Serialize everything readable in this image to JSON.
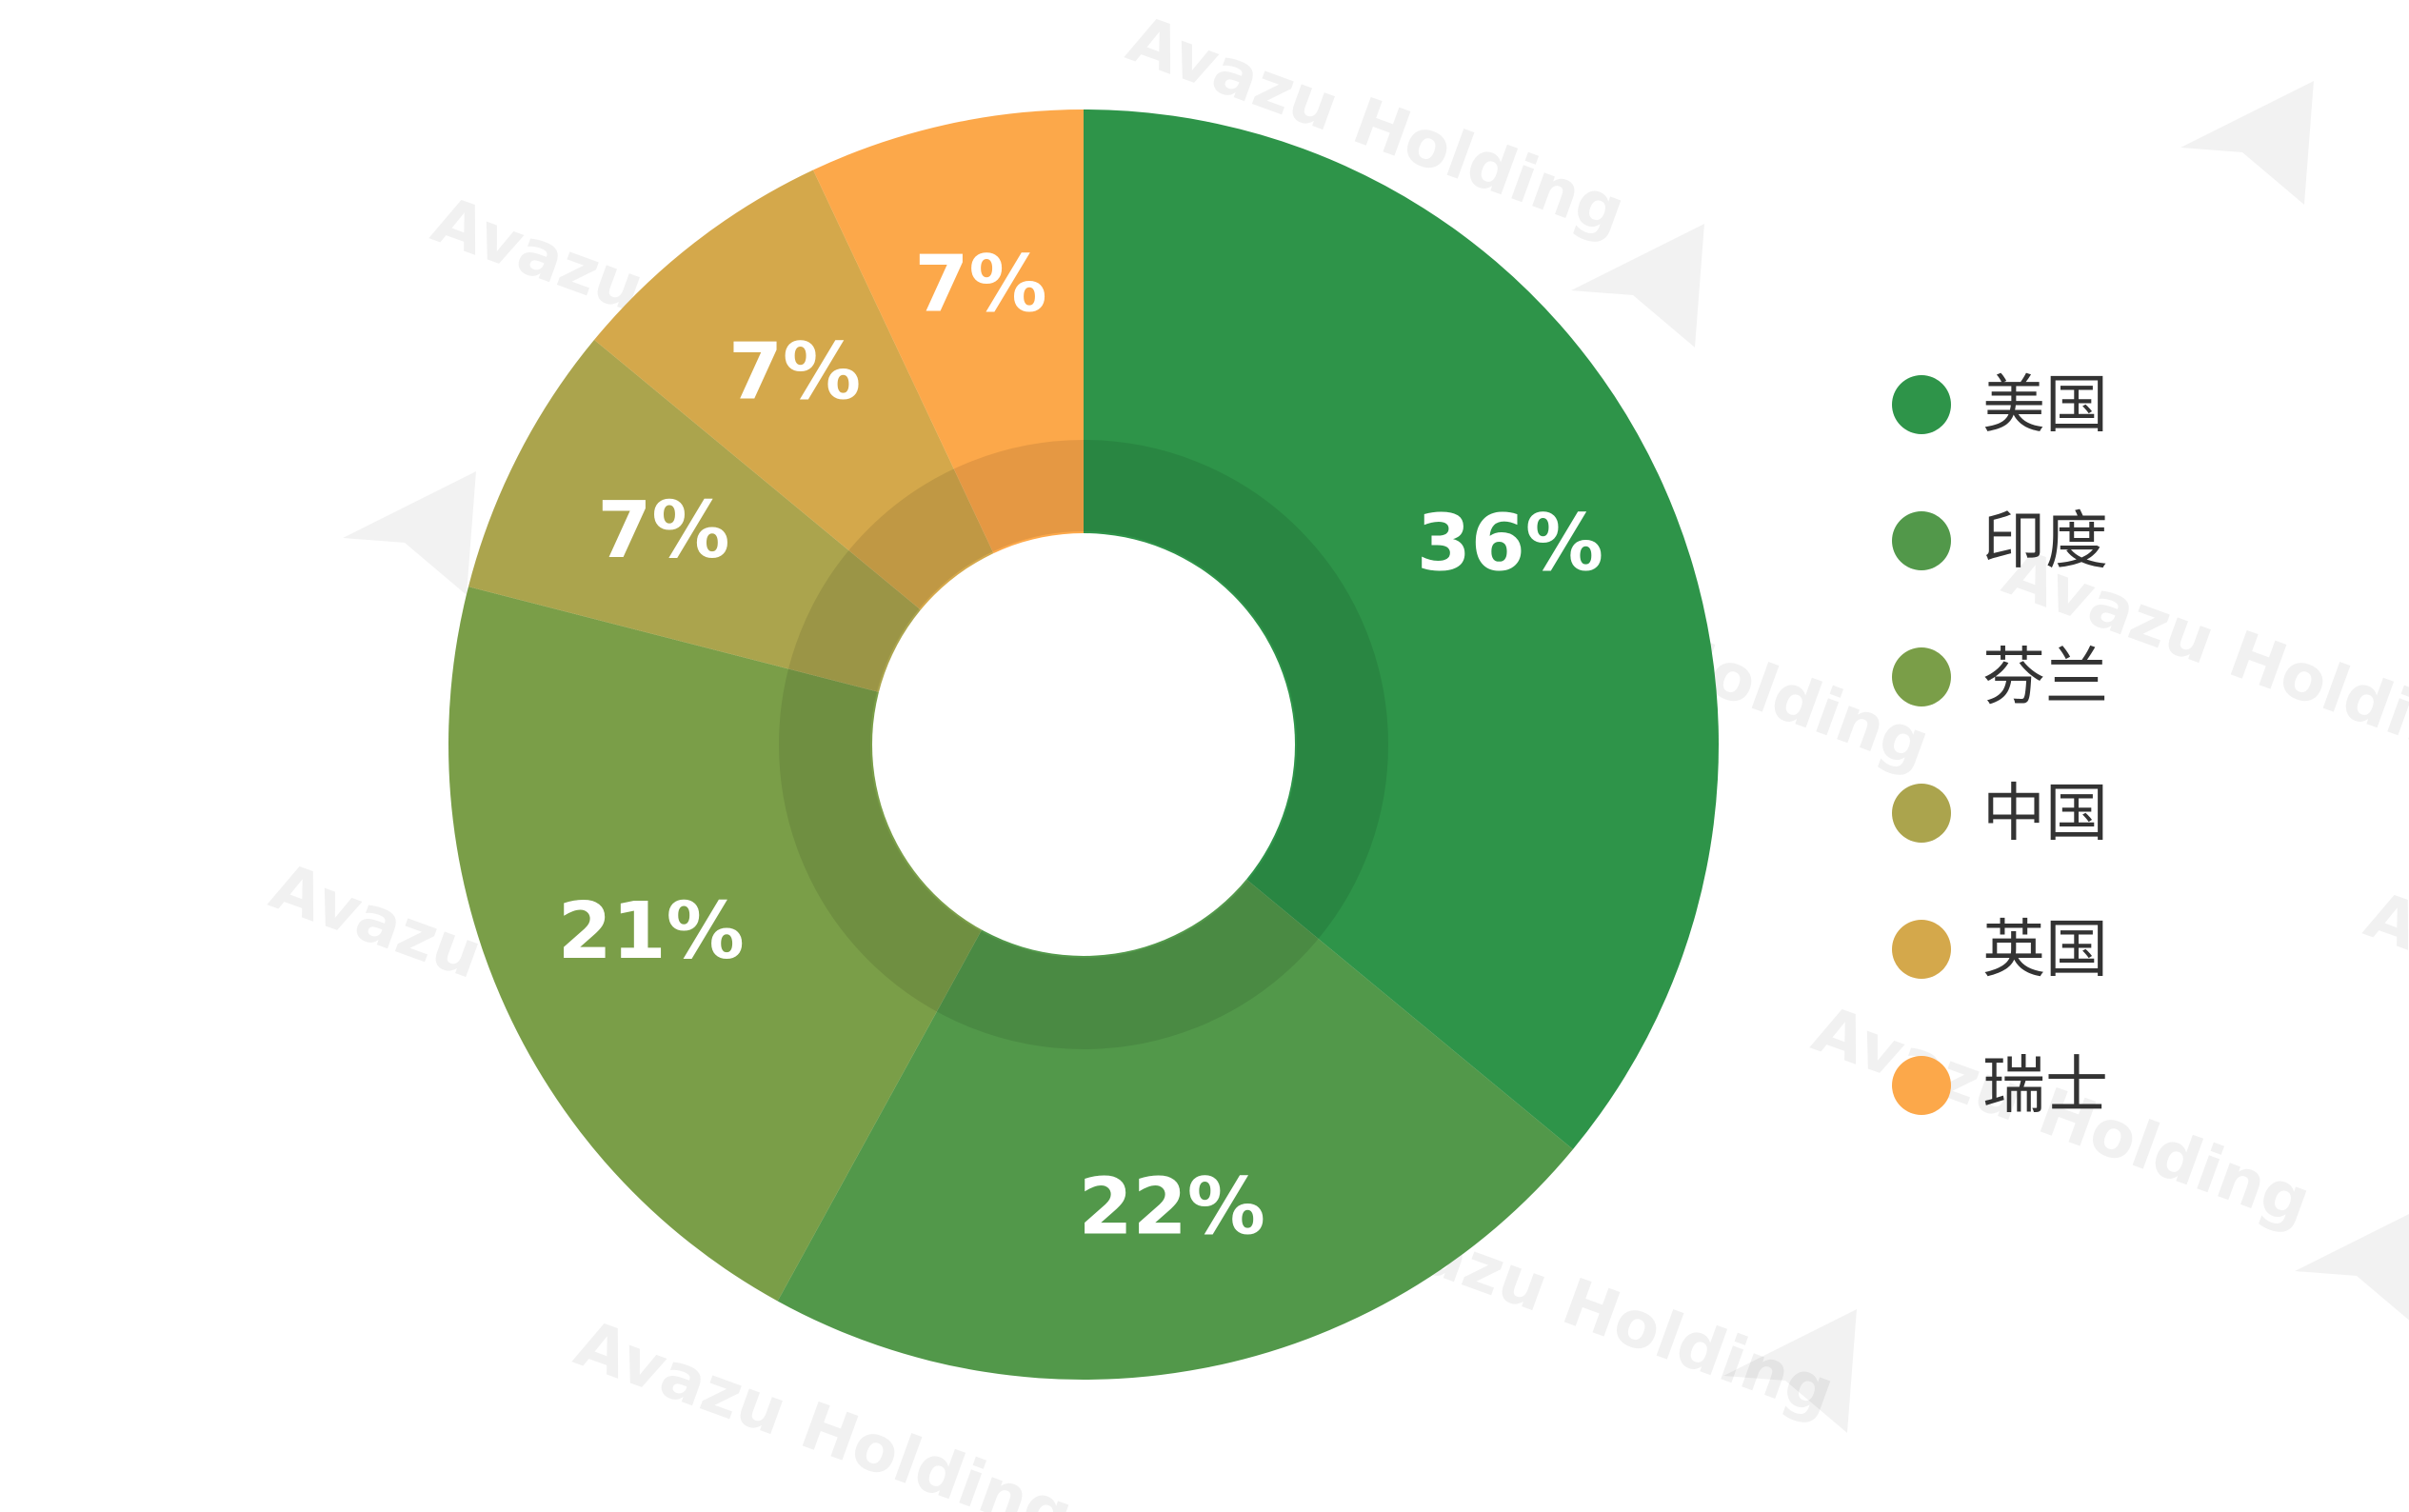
{
  "chart_data": {
    "type": "pie",
    "variant": "donut",
    "title": "",
    "start_angle_deg": 0,
    "direction": "clockwise",
    "legend_position": "right",
    "slices": [
      {
        "label": "美国",
        "value": 36,
        "display": "36%",
        "color": "#2e9449"
      },
      {
        "label": "印度",
        "value": 22,
        "display": "22%",
        "color": "#52984a"
      },
      {
        "label": "芬兰",
        "value": 21,
        "display": "21%",
        "color": "#7a9e48"
      },
      {
        "label": "中国",
        "value": 7,
        "display": "7%",
        "color": "#aba44d"
      },
      {
        "label": "英国",
        "value": 7,
        "display": "7%",
        "color": "#d4a84b"
      },
      {
        "label": "瑞士",
        "value": 7,
        "display": "7%",
        "color": "#fca84a"
      }
    ]
  },
  "watermark": {
    "text": "Avazu Holding"
  }
}
